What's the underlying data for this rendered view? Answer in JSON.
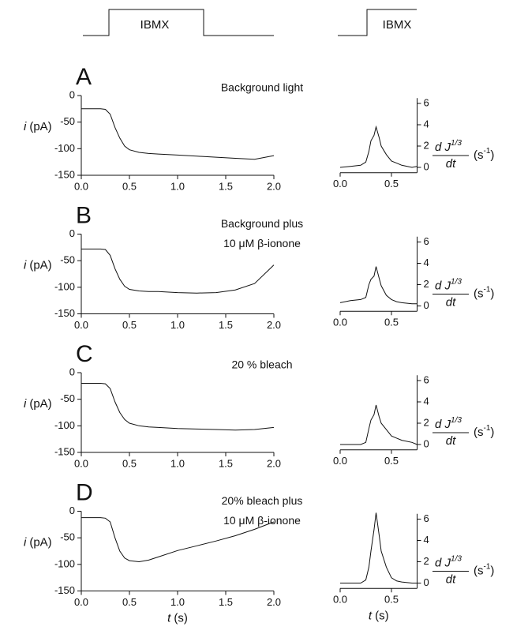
{
  "stimulus_labels": [
    "IBMX",
    "IBMX"
  ],
  "chart_data": [
    {
      "type": "line",
      "panel": "A",
      "title": [
        "Background light"
      ],
      "ylabel_symbol": "i",
      "ylabel_unit": "(pA)",
      "color": "#111111",
      "x": [
        0,
        0.1,
        0.2,
        0.25,
        0.3,
        0.35,
        0.4,
        0.45,
        0.5,
        0.6,
        0.7,
        0.8,
        1.0,
        1.2,
        1.4,
        1.6,
        1.8,
        2.0
      ],
      "values": [
        -25,
        -25,
        -25,
        -26,
        -35,
        -60,
        -80,
        -95,
        -102,
        -107,
        -109,
        -110,
        -112,
        -114,
        -116,
        -118,
        -120,
        -113
      ],
      "xlim": [
        0,
        2
      ],
      "xticks": [
        {
          "value": 0,
          "label": "0.0"
        },
        {
          "value": 0.5,
          "label": "0.5"
        },
        {
          "value": 1,
          "label": "1.0"
        },
        {
          "value": 1.5,
          "label": "1.5"
        },
        {
          "value": 2,
          "label": "2.0"
        }
      ],
      "ylim": [
        -150,
        0
      ],
      "yticks": [
        0,
        -50,
        -100,
        -150
      ]
    },
    {
      "type": "line",
      "ylabel_num": "d J",
      "ylabel_exp": "1/3",
      "ylabel_den": "dt",
      "ylabel_unit": "(s",
      "ylabel_unit_exp": "-1",
      "ylabel_unit_close": ")",
      "color": "#111111",
      "x": [
        0,
        0.1,
        0.2,
        0.25,
        0.28,
        0.3,
        0.33,
        0.35,
        0.38,
        0.4,
        0.45,
        0.5,
        0.55,
        0.6,
        0.7,
        0.75
      ],
      "values": [
        0,
        0.1,
        0.2,
        0.5,
        1.5,
        2.5,
        3,
        3.8,
        2.8,
        2,
        1.2,
        0.6,
        0.4,
        0.2,
        0,
        0.1
      ],
      "xlim": [
        0,
        0.75
      ],
      "xticks": [
        {
          "value": 0,
          "label": "0.0"
        },
        {
          "value": 0.5,
          "label": "0.5"
        }
      ],
      "ylim": [
        -0.5,
        6.5
      ],
      "yticks": [
        0,
        2,
        4,
        6
      ]
    },
    {
      "type": "line",
      "panel": "B",
      "title": [
        "Background plus",
        "10 μM β-ionone"
      ],
      "ylabel_symbol": "i",
      "ylabel_unit": "(pA)",
      "color": "#111111",
      "x": [
        0,
        0.1,
        0.2,
        0.25,
        0.3,
        0.35,
        0.4,
        0.45,
        0.5,
        0.6,
        0.7,
        0.8,
        1.0,
        1.2,
        1.4,
        1.6,
        1.8,
        2.0
      ],
      "values": [
        -28,
        -28,
        -28,
        -29,
        -40,
        -65,
        -85,
        -98,
        -104,
        -107,
        -108,
        -108,
        -110,
        -111,
        -110,
        -105,
        -93,
        -58
      ],
      "xlim": [
        0,
        2
      ],
      "xticks": [
        {
          "value": 0,
          "label": "0.0"
        },
        {
          "value": 0.5,
          "label": "0.5"
        },
        {
          "value": 1,
          "label": "1.0"
        },
        {
          "value": 1.5,
          "label": "1.5"
        },
        {
          "value": 2,
          "label": "2.0"
        }
      ],
      "ylim": [
        -150,
        0
      ],
      "yticks": [
        0,
        -50,
        -100,
        -150
      ]
    },
    {
      "type": "line",
      "ylabel_num": "d J",
      "ylabel_exp": "1/3",
      "ylabel_den": "dt",
      "ylabel_unit": "(s",
      "ylabel_unit_exp": "-1",
      "ylabel_unit_close": ")",
      "color": "#111111",
      "x": [
        0,
        0.1,
        0.2,
        0.25,
        0.28,
        0.3,
        0.33,
        0.35,
        0.38,
        0.4,
        0.45,
        0.5,
        0.55,
        0.6,
        0.7,
        0.75
      ],
      "values": [
        0.3,
        0.5,
        0.6,
        0.8,
        2,
        2.5,
        2.8,
        3.7,
        2.6,
        1.9,
        1,
        0.6,
        0.4,
        0.3,
        0.2,
        0.2
      ],
      "xlim": [
        0,
        0.75
      ],
      "xticks": [
        {
          "value": 0,
          "label": "0.0"
        },
        {
          "value": 0.5,
          "label": "0.5"
        }
      ],
      "ylim": [
        -0.5,
        6.5
      ],
      "yticks": [
        0,
        2,
        4,
        6
      ]
    },
    {
      "type": "line",
      "panel": "C",
      "title": [
        "20 % bleach"
      ],
      "ylabel_symbol": "i",
      "ylabel_unit": "(pA)",
      "color": "#111111",
      "x": [
        0,
        0.1,
        0.2,
        0.25,
        0.3,
        0.35,
        0.4,
        0.45,
        0.5,
        0.6,
        0.7,
        0.8,
        1.0,
        1.2,
        1.4,
        1.6,
        1.8,
        2.0
      ],
      "values": [
        -20,
        -20,
        -20,
        -21,
        -30,
        -55,
        -75,
        -88,
        -95,
        -100,
        -102,
        -103,
        -105,
        -106,
        -107,
        -108,
        -107,
        -103
      ],
      "xlim": [
        0,
        2
      ],
      "xticks": [
        {
          "value": 0,
          "label": "0.0"
        },
        {
          "value": 0.5,
          "label": "0.5"
        },
        {
          "value": 1,
          "label": "1.0"
        },
        {
          "value": 1.5,
          "label": "1.5"
        },
        {
          "value": 2,
          "label": "2.0"
        }
      ],
      "ylim": [
        -150,
        0
      ],
      "yticks": [
        0,
        -50,
        -100,
        -150
      ]
    },
    {
      "type": "line",
      "ylabel_num": "d J",
      "ylabel_exp": "1/3",
      "ylabel_den": "dt",
      "ylabel_unit": "(s",
      "ylabel_unit_exp": "-1",
      "ylabel_unit_close": ")",
      "color": "#111111",
      "x": [
        0,
        0.1,
        0.2,
        0.25,
        0.28,
        0.3,
        0.33,
        0.35,
        0.38,
        0.4,
        0.45,
        0.5,
        0.55,
        0.6,
        0.7,
        0.75
      ],
      "values": [
        0,
        0,
        0,
        0.2,
        1.5,
        2.3,
        2.8,
        3.7,
        2.6,
        2,
        1.4,
        0.8,
        0.6,
        0.4,
        0.2,
        0
      ],
      "xlim": [
        0,
        0.75
      ],
      "xticks": [
        {
          "value": 0,
          "label": "0.0"
        },
        {
          "value": 0.5,
          "label": "0.5"
        }
      ],
      "ylim": [
        -0.5,
        6.5
      ],
      "yticks": [
        0,
        2,
        4,
        6
      ]
    },
    {
      "type": "line",
      "panel": "D",
      "title": [
        "20% bleach plus",
        "10 μM β-ionone"
      ],
      "ylabel_symbol": "i",
      "ylabel_unit": "(pA)",
      "xlabel_symbol": "t",
      "xlabel_unit": "(s)",
      "color": "#111111",
      "x": [
        0,
        0.1,
        0.2,
        0.25,
        0.3,
        0.35,
        0.4,
        0.45,
        0.5,
        0.6,
        0.7,
        0.8,
        1.0,
        1.2,
        1.4,
        1.6,
        1.8,
        2.0
      ],
      "values": [
        -12,
        -12,
        -12,
        -13,
        -20,
        -50,
        -75,
        -88,
        -93,
        -95,
        -92,
        -86,
        -74,
        -65,
        -56,
        -46,
        -34,
        -20
      ],
      "xlim": [
        0,
        2
      ],
      "xticks": [
        {
          "value": 0,
          "label": "0.0"
        },
        {
          "value": 0.5,
          "label": "0.5"
        },
        {
          "value": 1,
          "label": "1.0"
        },
        {
          "value": 1.5,
          "label": "1.5"
        },
        {
          "value": 2,
          "label": "2.0"
        }
      ],
      "ylim": [
        -150,
        0
      ],
      "yticks": [
        0,
        -50,
        -100,
        -150
      ]
    },
    {
      "type": "line",
      "ylabel_num": "d J",
      "ylabel_exp": "1/3",
      "ylabel_den": "dt",
      "ylabel_unit": "(s",
      "ylabel_unit_exp": "-1",
      "ylabel_unit_close": ")",
      "xlabel_symbol": "t",
      "xlabel_unit": "(s)",
      "color": "#111111",
      "x": [
        0,
        0.1,
        0.2,
        0.25,
        0.28,
        0.3,
        0.33,
        0.35,
        0.38,
        0.4,
        0.45,
        0.5,
        0.55,
        0.6,
        0.7,
        0.75
      ],
      "values": [
        0,
        0,
        0,
        0.3,
        1.5,
        3,
        5,
        6.6,
        4.5,
        3,
        1.5,
        0.5,
        0.2,
        0.1,
        0,
        0
      ],
      "xlim": [
        0,
        0.75
      ],
      "xticks": [
        {
          "value": 0,
          "label": "0.0"
        },
        {
          "value": 0.5,
          "label": "0.5"
        }
      ],
      "ylim": [
        -0.5,
        6.5
      ],
      "yticks": [
        0,
        2,
        4,
        6
      ]
    }
  ]
}
